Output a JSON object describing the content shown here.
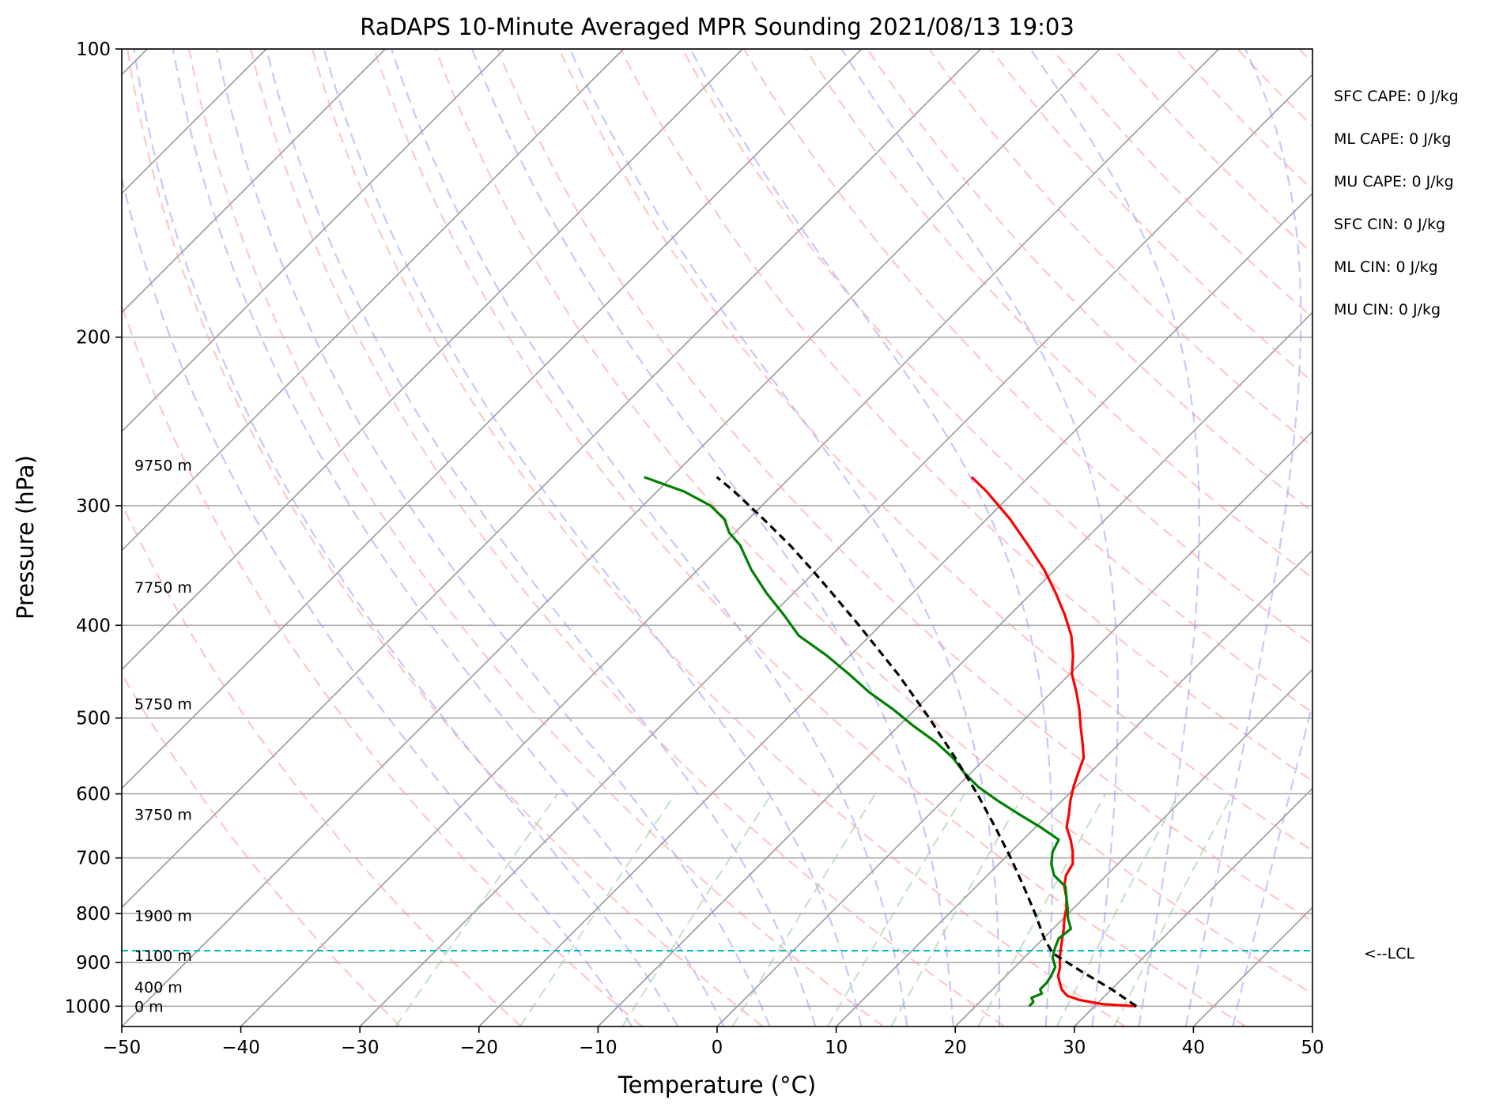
{
  "chart_data": {
    "type": "line",
    "title": "RaDAPS 10-Minute Averaged MPR Sounding 2021/08/13 19:03",
    "xlabel": "Temperature (°C)",
    "ylabel": "Pressure (hPa)",
    "xlim": [
      -50,
      50
    ],
    "ylim": [
      1050,
      100
    ],
    "y_scale": "log",
    "skew_t": true,
    "grid": true,
    "x_ticks": [
      -50,
      -40,
      -30,
      -20,
      -10,
      0,
      10,
      20,
      30,
      40,
      50
    ],
    "x_tick_labels": [
      "−50",
      "−40",
      "−30",
      "−20",
      "−10",
      "0",
      "10",
      "20",
      "30",
      "40",
      "50"
    ],
    "y_ticks": [
      100,
      200,
      300,
      400,
      500,
      600,
      700,
      800,
      900,
      1000
    ],
    "y_tick_labels": [
      "100",
      "200",
      "300",
      "400",
      "500",
      "600",
      "700",
      "800",
      "900",
      "1000"
    ],
    "colors": {
      "temperature": "#ff0000",
      "dewpoint": "#008000",
      "parcel": "#000000",
      "lcl": "#00bfbf",
      "dry_adiabats": "#ff9999",
      "moist_adiabats": "#9999ff",
      "mixing_ratio": "#99cc99",
      "isotherms": "#999999"
    },
    "series": [
      {
        "key": "temperature",
        "pressure": [
          1000,
          995,
          985,
          975,
          960,
          945,
          930,
          910,
          890,
          870,
          850,
          830,
          810,
          790,
          770,
          750,
          730,
          710,
          690,
          670,
          650,
          630,
          610,
          590,
          570,
          550,
          530,
          510,
          490,
          470,
          450,
          430,
          410,
          390,
          370,
          350,
          330,
          310,
          290,
          280
        ],
        "temperature": [
          33.5,
          30.5,
          28.2,
          26.8,
          25.8,
          25.1,
          24.4,
          23.8,
          23.0,
          22.3,
          21.6,
          20.9,
          20.1,
          19.4,
          18.5,
          17.4,
          16.6,
          16.2,
          15.2,
          14.0,
          12.6,
          11.7,
          10.7,
          9.8,
          9.0,
          8.2,
          6.8,
          5.3,
          3.8,
          2.1,
          0.2,
          -1.3,
          -3.1,
          -5.4,
          -8.0,
          -10.9,
          -14.3,
          -18.0,
          -22.3,
          -24.8
        ]
      },
      {
        "key": "dewpoint",
        "pressure": [
          1000,
          990,
          980,
          970,
          960,
          945,
          930,
          910,
          890,
          870,
          850,
          830,
          810,
          790,
          770,
          750,
          730,
          710,
          690,
          670,
          650,
          630,
          610,
          590,
          570,
          550,
          530,
          510,
          490,
          470,
          450,
          430,
          410,
          390,
          370,
          350,
          330,
          320,
          310,
          300,
          290,
          280
        ],
        "temperature": [
          24.5,
          24.5,
          24.0,
          24.5,
          24.0,
          24.0,
          23.8,
          23.4,
          22.4,
          21.8,
          21.3,
          21.5,
          20.4,
          19.5,
          18.5,
          17.5,
          15.6,
          14.4,
          13.5,
          13.0,
          10.4,
          7.5,
          4.6,
          1.8,
          -0.6,
          -2.8,
          -5.5,
          -8.7,
          -11.8,
          -15.3,
          -18.5,
          -22.0,
          -26.0,
          -29.0,
          -32.3,
          -35.5,
          -38.5,
          -40.5,
          -42.0,
          -44.3,
          -47.7,
          -52.3
        ]
      },
      {
        "key": "parcel",
        "pressure": [
          1000,
          960,
          920,
          880,
          850,
          800,
          750,
          700,
          650,
          600,
          550,
          500,
          450,
          400,
          370,
          350,
          330,
          310,
          290,
          280
        ],
        "temperature": [
          33.5,
          30.0,
          26.0,
          22.0,
          20.1,
          17.2,
          14.0,
          10.5,
          6.6,
          2.3,
          -2.6,
          -8.1,
          -14.4,
          -21.8,
          -26.8,
          -30.4,
          -34.3,
          -38.7,
          -43.5,
          -46.2
        ]
      }
    ],
    "lcl": {
      "pressure": 875,
      "label": "<--LCL"
    },
    "height_labels": [
      {
        "pressure": 1000,
        "label": "0 m"
      },
      {
        "pressure": 955,
        "label": "400 m"
      },
      {
        "pressure": 885,
        "label": "1100 m"
      },
      {
        "pressure": 804,
        "label": "1900 m"
      },
      {
        "pressure": 630,
        "label": "3750 m"
      },
      {
        "pressure": 483,
        "label": "5750 m"
      },
      {
        "pressure": 365,
        "label": "7750 m"
      },
      {
        "pressure": 272,
        "label": "9750 m"
      }
    ],
    "indices": [
      "SFC CAPE: 0 J/kg",
      "ML CAPE: 0 J/kg",
      "MU CAPE: 0 J/kg",
      "SFC CIN: 0 J/kg",
      "ML CIN: 0 J/kg",
      "MU CIN: 0 J/kg"
    ]
  }
}
